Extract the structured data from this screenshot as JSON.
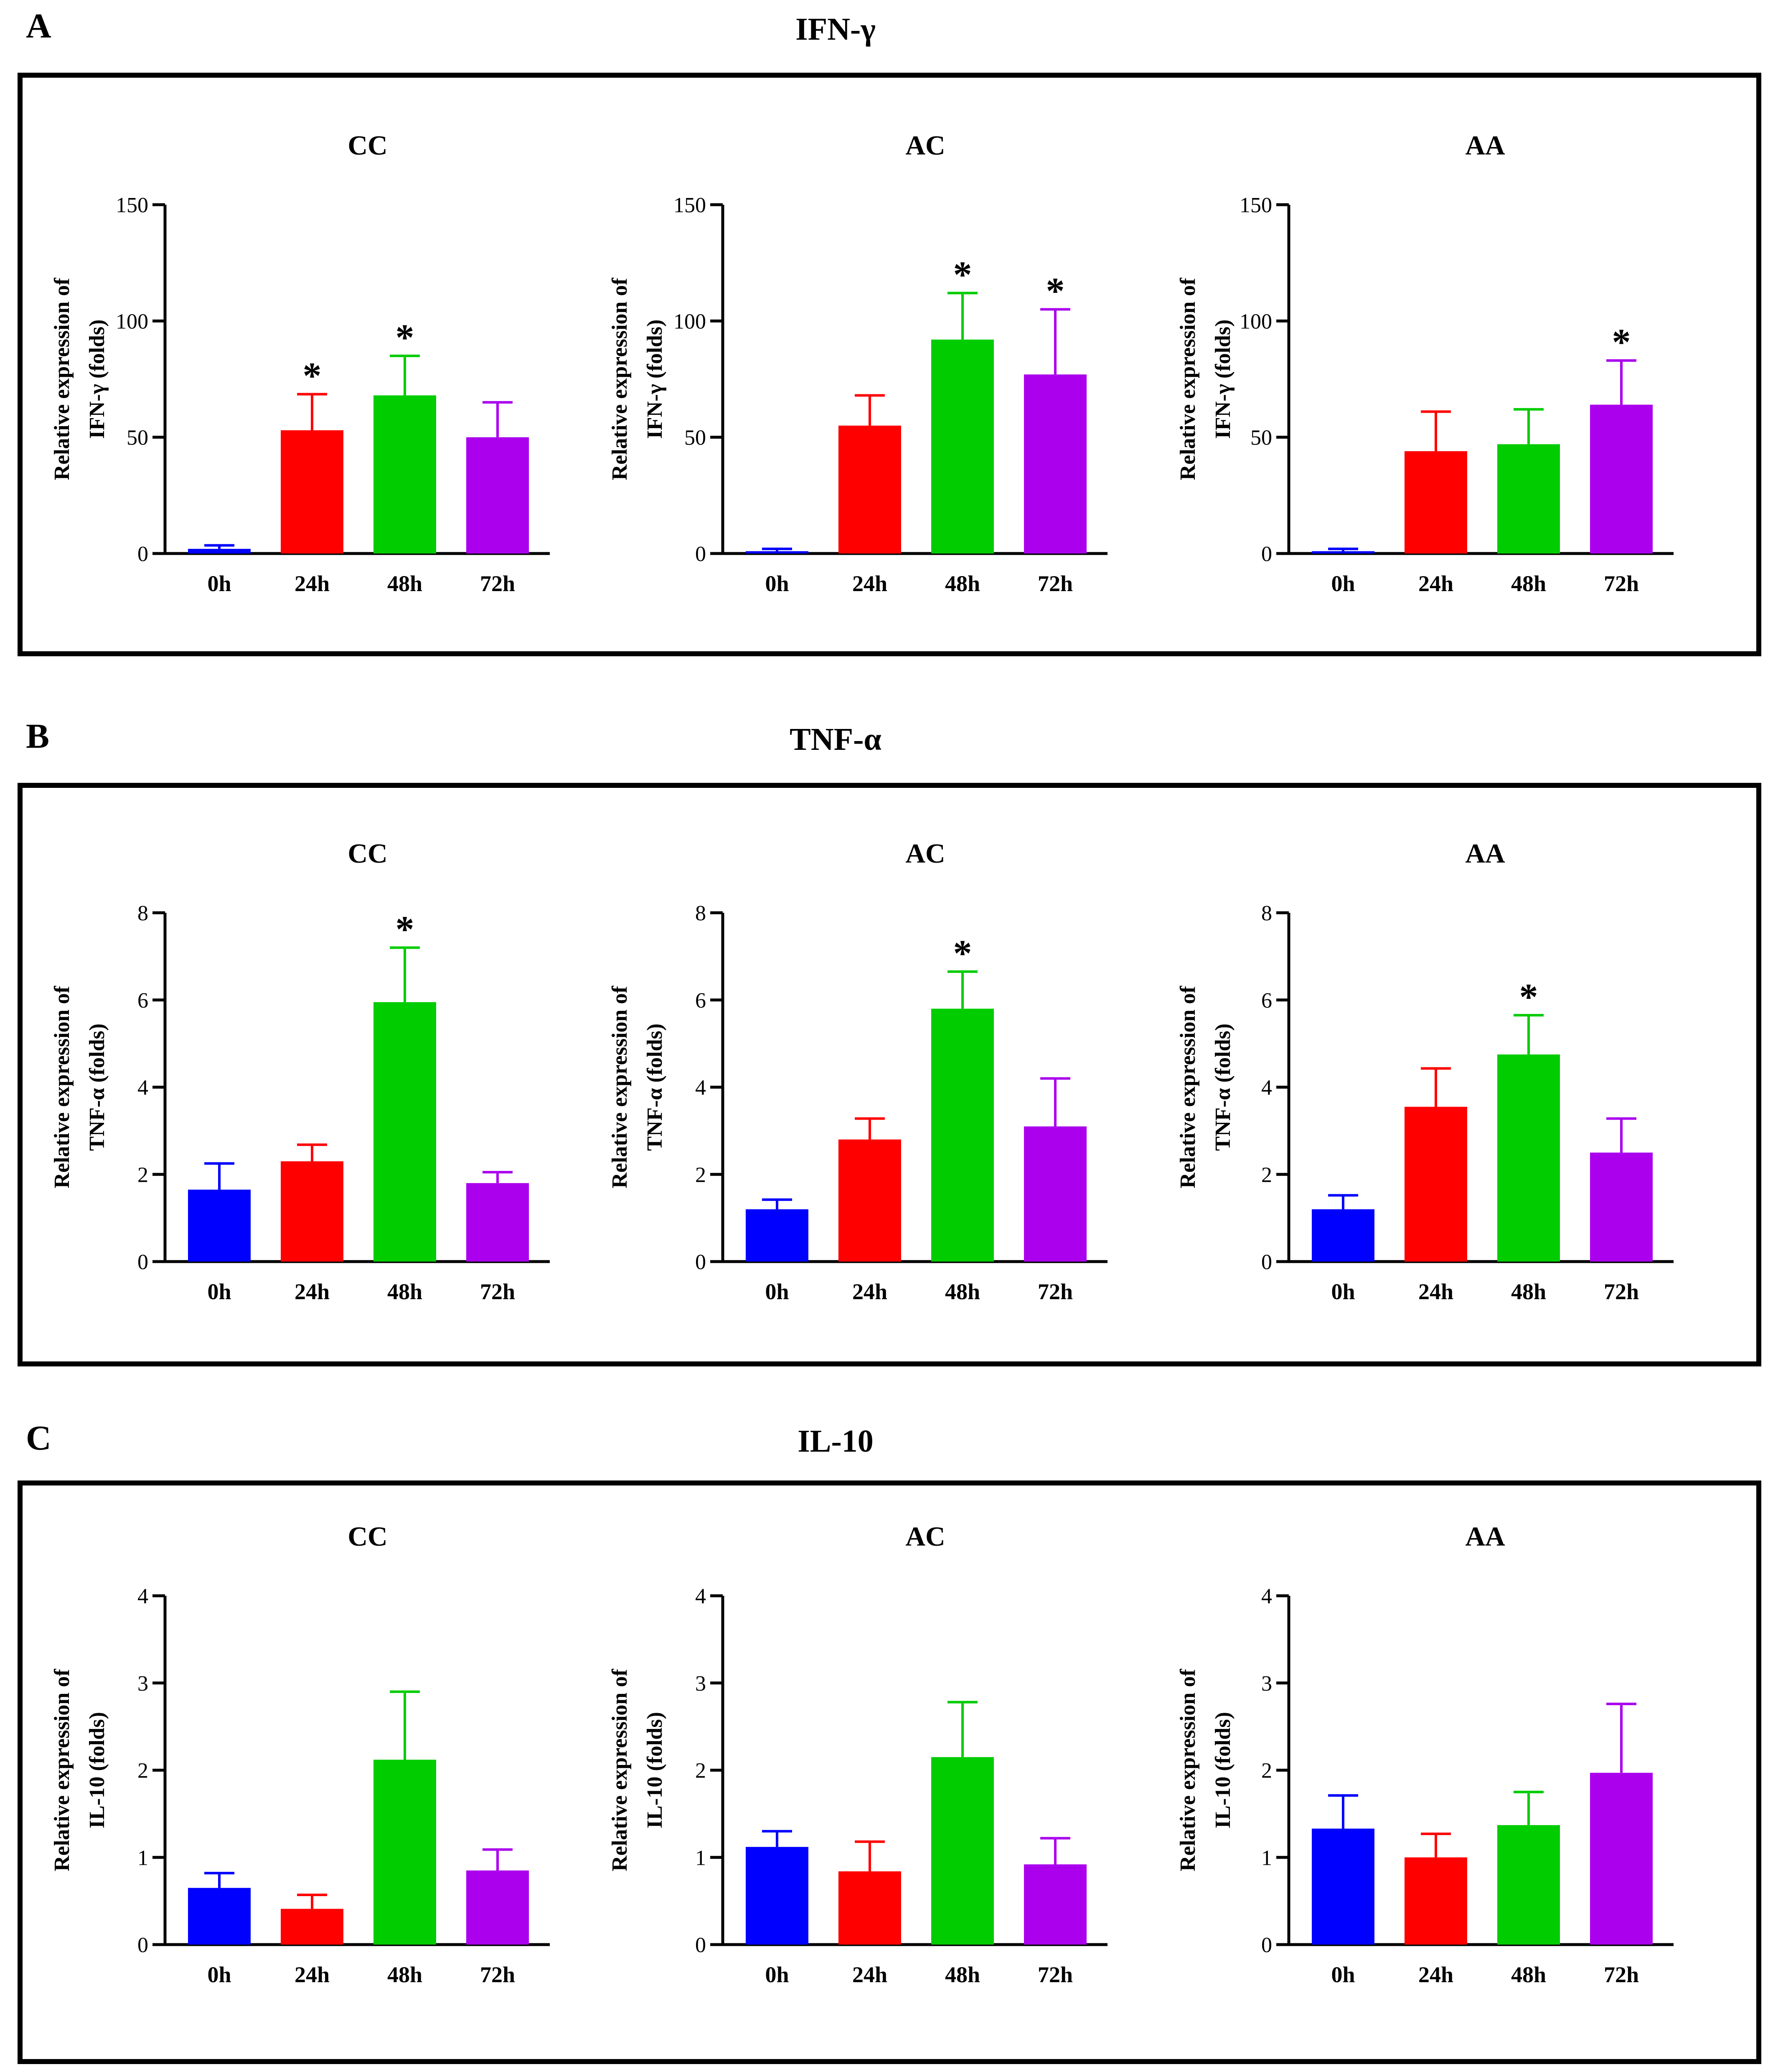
{
  "colors": {
    "t0": "#0000ff",
    "t24": "#ff0000",
    "t48": "#00cc00",
    "t72": "#aa00ee",
    "ink": "#000000"
  },
  "panels": [
    {
      "letter": "A",
      "title": "IFN-γ",
      "ylabel_line1": "Relative expression of",
      "ylabel_line2": "IFN-γ (folds)",
      "ylim": [
        0,
        150
      ],
      "yticks": [
        "0",
        "50",
        "100",
        "150"
      ],
      "chart_data": [
        {
          "type": "bar",
          "title": "CC",
          "categories": [
            "0h",
            "24h",
            "48h",
            "72h"
          ],
          "values": [
            2,
            53,
            68,
            50
          ],
          "error": [
            1.5,
            15.5,
            17,
            15
          ],
          "significance": [
            "",
            "*",
            "*",
            ""
          ],
          "ylim": [
            0,
            150
          ],
          "ylabel": "Relative expression of IFN-γ (folds)"
        },
        {
          "type": "bar",
          "title": "AC",
          "categories": [
            "0h",
            "24h",
            "48h",
            "72h"
          ],
          "values": [
            1,
            55,
            92,
            77
          ],
          "error": [
            1,
            13,
            20,
            28
          ],
          "significance": [
            "",
            "",
            "*",
            "*"
          ],
          "ylim": [
            0,
            150
          ],
          "ylabel": "Relative expression of IFN-γ (folds)"
        },
        {
          "type": "bar",
          "title": "AA",
          "categories": [
            "0h",
            "24h",
            "48h",
            "72h"
          ],
          "values": [
            1,
            44,
            47,
            64
          ],
          "error": [
            1,
            17,
            15,
            19
          ],
          "significance": [
            "",
            "",
            "",
            "*"
          ],
          "ylim": [
            0,
            150
          ],
          "ylabel": "Relative expression of IFN-γ (folds)"
        }
      ]
    },
    {
      "letter": "B",
      "title": "TNF-α",
      "ylabel_line1": "Relative expression of",
      "ylabel_line2": "TNF-α (folds)",
      "ylim": [
        0,
        8
      ],
      "yticks": [
        "0",
        "2",
        "4",
        "6",
        "8"
      ],
      "chart_data": [
        {
          "type": "bar",
          "title": "CC",
          "categories": [
            "0h",
            "24h",
            "48h",
            "72h"
          ],
          "values": [
            1.65,
            2.3,
            5.95,
            1.8
          ],
          "error": [
            0.6,
            0.38,
            1.25,
            0.25
          ],
          "significance": [
            "",
            "",
            "*",
            ""
          ],
          "ylim": [
            0,
            8
          ],
          "ylabel": "Relative expression of TNF-α (folds)"
        },
        {
          "type": "bar",
          "title": "AC",
          "categories": [
            "0h",
            "24h",
            "48h",
            "72h"
          ],
          "values": [
            1.2,
            2.8,
            5.8,
            3.1
          ],
          "error": [
            0.22,
            0.48,
            0.85,
            1.1
          ],
          "significance": [
            "",
            "",
            "*",
            ""
          ],
          "ylim": [
            0,
            8
          ],
          "ylabel": "Relative expression of TNF-α (folds)"
        },
        {
          "type": "bar",
          "title": "AA",
          "categories": [
            "0h",
            "24h",
            "48h",
            "72h"
          ],
          "values": [
            1.2,
            3.55,
            4.75,
            2.5
          ],
          "error": [
            0.32,
            0.88,
            0.9,
            0.78
          ],
          "significance": [
            "",
            "",
            "*",
            ""
          ],
          "ylim": [
            0,
            8
          ],
          "ylabel": "Relative expression of TNF-α (folds)"
        }
      ]
    },
    {
      "letter": "C",
      "title": "IL-10",
      "ylabel_line1": "Relative expression of",
      "ylabel_line2": "IL-10 (folds)",
      "ylim": [
        0,
        4
      ],
      "yticks": [
        "0",
        "1",
        "2",
        "3",
        "4"
      ],
      "chart_data": [
        {
          "type": "bar",
          "title": "CC",
          "categories": [
            "0h",
            "24h",
            "48h",
            "72h"
          ],
          "values": [
            0.65,
            0.41,
            2.12,
            0.85
          ],
          "error": [
            0.17,
            0.16,
            0.78,
            0.24
          ],
          "significance": [
            "",
            "",
            "",
            ""
          ],
          "ylim": [
            0,
            4
          ],
          "ylabel": "Relative expression of IL-10 (folds)"
        },
        {
          "type": "bar",
          "title": "AC",
          "categories": [
            "0h",
            "24h",
            "48h",
            "72h"
          ],
          "values": [
            1.12,
            0.84,
            2.15,
            0.92
          ],
          "error": [
            0.18,
            0.34,
            0.63,
            0.3
          ],
          "significance": [
            "",
            "",
            "",
            ""
          ],
          "ylim": [
            0,
            4
          ],
          "ylabel": "Relative expression of IL-10 (folds)"
        },
        {
          "type": "bar",
          "title": "AA",
          "categories": [
            "0h",
            "24h",
            "48h",
            "72h"
          ],
          "values": [
            1.33,
            1.0,
            1.37,
            1.97
          ],
          "error": [
            0.38,
            0.27,
            0.38,
            0.79
          ],
          "significance": [
            "",
            "",
            "",
            ""
          ],
          "ylim": [
            0,
            4
          ],
          "ylabel": "Relative expression of IL-10 (folds)"
        }
      ]
    }
  ]
}
